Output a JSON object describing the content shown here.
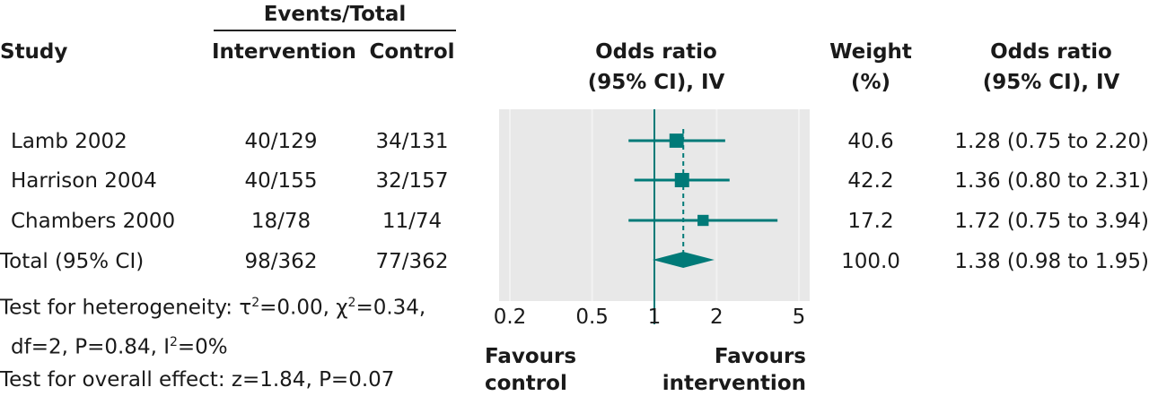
{
  "headers": {
    "events_total": "Events/Total",
    "study": "Study",
    "intervention": "Intervention",
    "control": "Control",
    "or_plot_line1": "Odds ratio",
    "or_plot_line2": "(95% CI), IV",
    "weight_line1": "Weight",
    "weight_line2": "(%)",
    "or_text_line1": "Odds ratio",
    "or_text_line2": "(95% CI), IV"
  },
  "rows": [
    {
      "study": "Lamb 2002",
      "intervention": "40/129",
      "control": "34/131",
      "weight": "40.6",
      "or_text": "1.28 (0.75 to 2.20)"
    },
    {
      "study": "Harrison 2004",
      "intervention": "40/155",
      "control": "32/157",
      "weight": "42.2",
      "or_text": "1.36 (0.80 to 2.31)"
    },
    {
      "study": "Chambers 2000",
      "intervention": "18/78",
      "control": "11/74",
      "weight": "17.2",
      "or_text": "1.72 (0.75 to 3.94)"
    }
  ],
  "total": {
    "label": "Total (95% CI)",
    "intervention": "98/362",
    "control": "77/362",
    "weight": "100.0",
    "or_text": "1.38 (0.98 to 1.95)"
  },
  "footer": {
    "heterogeneity_prefix": "Test for heterogeneity: ",
    "tau_symbol": "τ",
    "tau_sup": "2",
    "tau_value": "=0.00, ",
    "chi_symbol": "χ",
    "chi_sup": "2",
    "chi_value": "=0.34,",
    "heterogeneity_line2_prefix": "df=2, P=0.84, I",
    "i_sup": "2",
    "i_value": "=0%",
    "overall_effect": "Test for overall effect: z=1.84, P=0.07"
  },
  "favours": {
    "left_line1": "Favours",
    "left_line2": "control",
    "right_line1": "Favours",
    "right_line2": "intervention"
  },
  "chart_data": {
    "type": "forest",
    "scale": "log",
    "xlim": [
      0.2,
      5
    ],
    "reference_line": 1,
    "ticks": [
      0.2,
      0.5,
      1,
      2,
      5
    ],
    "tick_labels": [
      "0.2",
      "0.5",
      "1",
      "2",
      "5"
    ],
    "studies": [
      {
        "name": "Lamb 2002",
        "or": 1.28,
        "lower": 0.75,
        "upper": 2.2,
        "weight": 40.6
      },
      {
        "name": "Harrison 2004",
        "or": 1.36,
        "lower": 0.8,
        "upper": 2.31,
        "weight": 42.2
      },
      {
        "name": "Chambers 2000",
        "or": 1.72,
        "lower": 0.75,
        "upper": 3.94,
        "weight": 17.2
      }
    ],
    "pooled": {
      "or": 1.38,
      "lower": 0.98,
      "upper": 1.95
    },
    "colors": {
      "marker": "#007a78",
      "panel": "#e8e8e8",
      "reference": "#007a78"
    }
  }
}
